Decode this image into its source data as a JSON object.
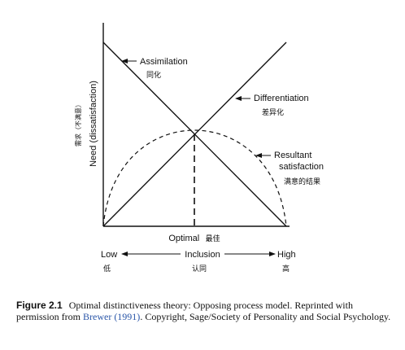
{
  "diagram": {
    "y_axis_label": "Need (dissatisfaction)",
    "y_axis_label_cn": "需求（不满意）",
    "curves": {
      "assimilation": {
        "label": "Assimilation",
        "label_cn": "同化"
      },
      "differentiation": {
        "label": "Differentiation",
        "label_cn": "差异化"
      },
      "resultant": {
        "label_line1": "Resultant",
        "label_line2": "satisfaction",
        "label_cn": "满意的结果"
      }
    },
    "optimal": {
      "label": "Optimal",
      "label_cn": "最佳"
    },
    "x_axis": {
      "low": "Low",
      "low_cn": "低",
      "middle": "Inclusion",
      "middle_cn": "认同",
      "high": "High",
      "high_cn": "高"
    }
  },
  "caption": {
    "figure_label": "Figure 2.1",
    "text_before_ref": "Optimal distinctiveness theory: Opposing process model. Reprinted with permission from ",
    "reference": "Brewer (1991)",
    "text_after_ref": ". Copyright, Sage/Society of Personality and Social Psychology."
  }
}
